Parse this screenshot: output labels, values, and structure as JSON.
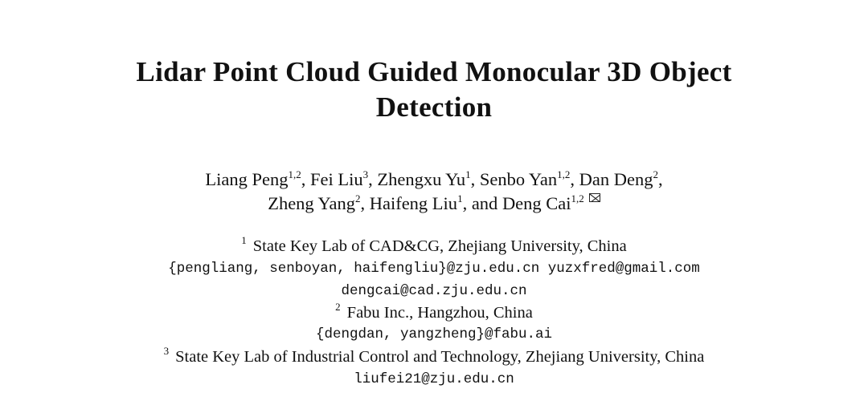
{
  "title": {
    "line1": "Lidar Point Cloud Guided Monocular 3D Object",
    "line2": "Detection"
  },
  "authors": [
    {
      "name": "Liang Peng",
      "sup": "1,2",
      "sep": ", "
    },
    {
      "name": "Fei Liu",
      "sup": "3",
      "sep": ", "
    },
    {
      "name": "Zhengxu Yu",
      "sup": "1",
      "sep": ", "
    },
    {
      "name": "Senbo Yan",
      "sup": "1,2",
      "sep": ", "
    },
    {
      "name": "Dan Deng",
      "sup": "2",
      "sep": ","
    },
    {
      "name": "Zheng Yang",
      "sup": "2",
      "sep": ", "
    },
    {
      "name": "Haifeng Liu",
      "sup": "1",
      "sep": ", and "
    },
    {
      "name": "Deng Cai",
      "sup": "1,2",
      "sep": ""
    }
  ],
  "corresponding_icon": "envelope-icon",
  "affiliations": [
    {
      "num": "1",
      "name": "State Key Lab of CAD&CG, Zhejiang University, China",
      "emails": [
        "{pengliang, senboyan, haifengliu}@zju.edu.cn yuzxfred@gmail.com",
        "dengcai@cad.zju.edu.cn"
      ]
    },
    {
      "num": "2",
      "name": "Fabu Inc., Hangzhou, China",
      "emails": [
        "{dengdan, yangzheng}@fabu.ai"
      ]
    },
    {
      "num": "3",
      "name": "State Key Lab of Industrial Control and Technology, Zhejiang University, China",
      "emails": [
        "liufei21@zju.edu.cn"
      ]
    }
  ]
}
